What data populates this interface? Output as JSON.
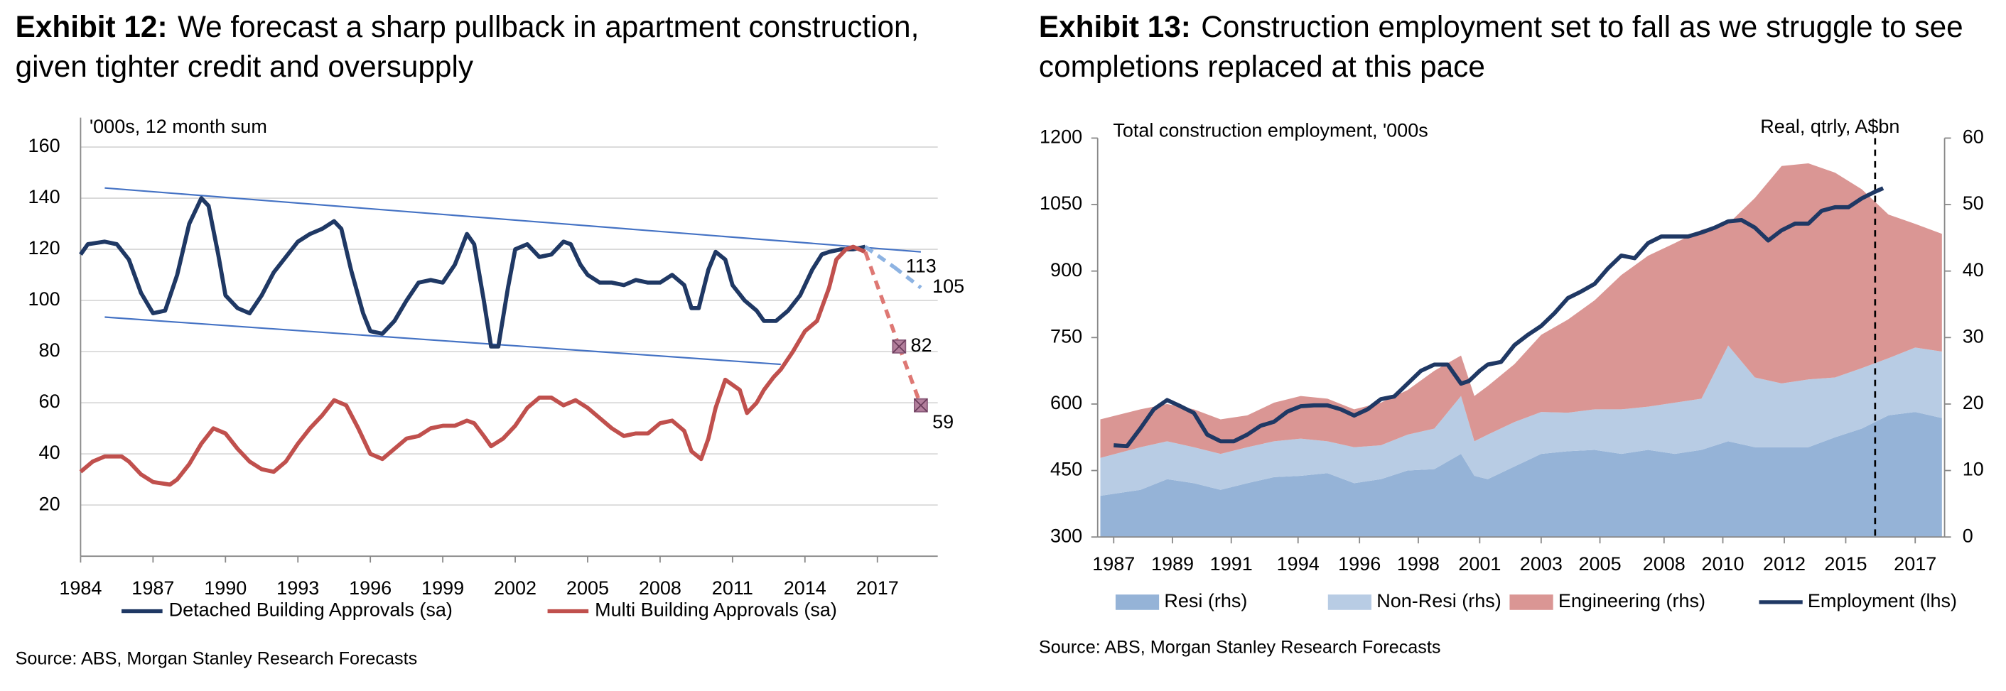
{
  "chart_data": [
    {
      "type": "line",
      "exhibit": "Exhibit 12:",
      "title": "We forecast a sharp pullback in apartment construction, given tighter credit and oversupply",
      "annotation": "'000s, 12 month sum",
      "source": "Source: ABS, Morgan Stanley Research Forecasts",
      "xlim": [
        1984,
        2019.5
      ],
      "xticks": [
        1984,
        1987,
        1990,
        1993,
        1996,
        1999,
        2002,
        2005,
        2008,
        2011,
        2014,
        2017
      ],
      "ylim": [
        0,
        160
      ],
      "yticks": [
        20,
        40,
        60,
        80,
        100,
        120,
        140,
        160
      ],
      "grid": true,
      "legend": "bottom",
      "series": [
        {
          "name": "Detached Building Approvals (sa)",
          "color": "#1f3864",
          "x": [
            1984,
            1984.3,
            1985,
            1985.5,
            1986,
            1986.5,
            1987,
            1987.5,
            1988,
            1988.5,
            1989,
            1989.3,
            1989.7,
            1990,
            1990.5,
            1991,
            1991.5,
            1992,
            1992.5,
            1993,
            1993.5,
            1994,
            1994.5,
            1994.8,
            1995.2,
            1995.7,
            1996,
            1996.5,
            1997,
            1997.5,
            1998,
            1998.5,
            1999,
            1999.5,
            2000,
            2000.3,
            2000.7,
            2001,
            2001.3,
            2001.7,
            2002,
            2002.5,
            2003,
            2003.5,
            2004,
            2004.3,
            2004.7,
            2005,
            2005.5,
            2006,
            2006.5,
            2007,
            2007.5,
            2008,
            2008.5,
            2009,
            2009.3,
            2009.6,
            2010,
            2010.3,
            2010.7,
            2011,
            2011.5,
            2012,
            2012.3,
            2012.8,
            2013.3,
            2013.8,
            2014.3,
            2014.7,
            2015,
            2015.5,
            2016,
            2016.5
          ],
          "values": [
            118,
            122,
            123,
            122,
            116,
            103,
            95,
            96,
            110,
            130,
            140,
            137,
            118,
            102,
            97,
            95,
            102,
            111,
            117,
            123,
            126,
            128,
            131,
            128,
            112,
            95,
            88,
            87,
            92,
            100,
            107,
            108,
            107,
            114,
            126,
            122,
            100,
            82,
            82,
            105,
            120,
            122,
            117,
            118,
            123,
            122,
            114,
            110,
            107,
            107,
            106,
            108,
            107,
            107,
            110,
            106,
            97,
            97,
            112,
            119,
            116,
            106,
            100,
            96,
            92,
            92,
            96,
            102,
            112,
            118,
            119,
            120,
            120,
            121
          ]
        },
        {
          "name": "Multi Building Approvals (sa)",
          "color": "#c0504d",
          "x": [
            1984,
            1984.5,
            1985,
            1985.7,
            1986,
            1986.5,
            1987,
            1987.7,
            1988,
            1988.5,
            1989,
            1989.5,
            1990,
            1990.5,
            1991,
            1991.5,
            1992,
            1992.5,
            1993,
            1993.5,
            1994,
            1994.5,
            1995,
            1995.5,
            1996,
            1996.5,
            1997,
            1997.5,
            1998,
            1998.5,
            1999,
            1999.5,
            2000,
            2000.3,
            2000.7,
            2001,
            2001.5,
            2002,
            2002.5,
            2003,
            2003.5,
            2004,
            2004.5,
            2005,
            2005.5,
            2006,
            2006.5,
            2007,
            2007.5,
            2008,
            2008.5,
            2009,
            2009.3,
            2009.7,
            2010,
            2010.3,
            2010.7,
            2011,
            2011.3,
            2011.6,
            2012,
            2012.3,
            2012.7,
            2013,
            2013.5,
            2014,
            2014.5,
            2015,
            2015.3,
            2015.7,
            2016,
            2016.5
          ],
          "values": [
            33,
            37,
            39,
            39,
            37,
            32,
            29,
            28,
            30,
            36,
            44,
            50,
            48,
            42,
            37,
            34,
            33,
            37,
            44,
            50,
            55,
            61,
            59,
            50,
            40,
            38,
            42,
            46,
            47,
            50,
            51,
            51,
            53,
            52,
            47,
            43,
            46,
            51,
            58,
            62,
            62,
            59,
            61,
            58,
            54,
            50,
            47,
            48,
            48,
            52,
            53,
            49,
            41,
            38,
            46,
            58,
            69,
            67,
            65,
            56,
            60,
            65,
            70,
            73,
            80,
            88,
            92,
            105,
            116,
            120,
            121,
            119
          ]
        }
      ],
      "forecasts": [
        {
          "color": "#8db3e2",
          "x": [
            2017.7,
            2018.8
          ],
          "values": [
            113,
            105
          ]
        },
        {
          "color": "#de7874",
          "x": [
            2017.9,
            2018.8
          ],
          "values": [
            82,
            59
          ],
          "marker": "x"
        }
      ],
      "trend_lines": [
        {
          "color": "#4472c4",
          "x": [
            1985,
            2018.8
          ],
          "values": [
            144,
            119
          ]
        },
        {
          "color": "#4472c4",
          "x": [
            1985,
            2013
          ],
          "values": [
            93.5,
            75
          ]
        }
      ]
    },
    {
      "type": "area",
      "exhibit": "Exhibit 13:",
      "title": "Construction employment set to fall as we struggle to see completions replaced at this pace",
      "annotations": [
        "Total construction employment, '000s",
        "Real, qtrly, A$bn"
      ],
      "source": "Source: ABS, Morgan Stanley Research Forecasts",
      "xlim": [
        1986.4,
        2018.1
      ],
      "xticks": [
        {
          "value": 1987,
          "label": "1987"
        },
        {
          "value": 1989.2,
          "label": "1989"
        },
        {
          "value": 1991.4,
          "label": "1991"
        },
        {
          "value": 1993.9,
          "label": "1994"
        },
        {
          "value": 1996.2,
          "label": "1996"
        },
        {
          "value": 1998.4,
          "label": "1998"
        },
        {
          "value": 2000.7,
          "label": "2001"
        },
        {
          "value": 2003.0,
          "label": "2003"
        },
        {
          "value": 2005.2,
          "label": "2005"
        },
        {
          "value": 2007.6,
          "label": "2008"
        },
        {
          "value": 2009.8,
          "label": "2010"
        },
        {
          "value": 2012.1,
          "label": "2012"
        },
        {
          "value": 2014.4,
          "label": "2015"
        },
        {
          "value": 2017,
          "label": "2017"
        }
      ],
      "ylim": [
        300,
        1200
      ],
      "yticks": [
        300,
        450,
        600,
        750,
        900,
        1050,
        1200
      ],
      "y2lim": [
        0,
        60
      ],
      "y2ticks": [
        0,
        10,
        20,
        30,
        40,
        50,
        60
      ],
      "grid": false,
      "legend": "bottom",
      "vline": 2015.5,
      "series": [
        {
          "name": "Resi (rhs)",
          "color": "#95b3d7",
          "axis": "y2",
          "type": "area",
          "x": [
            1986.5,
            1988,
            1989,
            1990,
            1991,
            1992,
            1993,
            1994,
            1995,
            1996,
            1997,
            1998,
            1999,
            2000,
            2000.5,
            2001,
            2002,
            2003,
            2004,
            2005,
            2006,
            2007,
            2008,
            2009,
            2010,
            2011,
            2012,
            2013,
            2014,
            2015,
            2016,
            2017,
            2018
          ],
          "values": [
            6.2,
            7.1,
            8.7,
            8.1,
            7.1,
            8.1,
            9.0,
            9.2,
            9.6,
            8.1,
            8.7,
            10.0,
            10.2,
            12.5,
            9.2,
            8.7,
            10.6,
            12.5,
            12.9,
            13.1,
            12.5,
            13.1,
            12.5,
            13.1,
            14.4,
            13.5,
            13.5,
            13.5,
            15.0,
            16.3,
            18.3,
            18.8,
            17.9
          ]
        },
        {
          "name": "Non-Resi (rhs)",
          "color": "#b8cce4",
          "axis": "y2",
          "type": "area",
          "x": [
            1986.5,
            1988,
            1989,
            1990,
            1991,
            1992,
            1993,
            1994,
            1995,
            1996,
            1997,
            1998,
            1999,
            2000,
            2000.5,
            2001,
            2002,
            2003,
            2004,
            2005,
            2006,
            2007,
            2008,
            2009,
            2010,
            2011,
            2012,
            2013,
            2014,
            2015,
            2016,
            2017,
            2018
          ],
          "values": [
            5.7,
            6.4,
            5.7,
            5.4,
            5.4,
            5.4,
            5.4,
            5.6,
            4.8,
            5.4,
            5.1,
            5.4,
            6.1,
            8.7,
            5.2,
            6.7,
            6.7,
            6.3,
            5.8,
            6.1,
            6.7,
            6.5,
            7.7,
            7.7,
            14.4,
            10.5,
            9.6,
            10.2,
            9.0,
            9.1,
            8.6,
            9.7,
            10.0
          ]
        },
        {
          "name": "Engineering (rhs)",
          "color": "#da9694",
          "axis": "y2",
          "type": "area",
          "x": [
            1986.5,
            1988,
            1989,
            1990,
            1991,
            1992,
            1993,
            1994,
            1995,
            1996,
            1997,
            1998,
            1999,
            2000,
            2000.5,
            2001,
            2002,
            2003,
            2004,
            2005,
            2006,
            2007,
            2008,
            2009,
            2010,
            2011,
            2012,
            2013,
            2014,
            2015,
            2016,
            2017,
            2018
          ],
          "values": [
            5.8,
            5.7,
            5.6,
            5.7,
            5.2,
            4.8,
            5.8,
            6.4,
            6.4,
            5.7,
            6.4,
            6.7,
            8.7,
            6.1,
            6.8,
            7.3,
            8.7,
            11.6,
            14.0,
            16.4,
            20.2,
            22.7,
            24.0,
            25.4,
            18.3,
            27.0,
            32.7,
            32.5,
            30.8,
            26.9,
            21.6,
            18.6,
            17.7
          ]
        },
        {
          "name": "Employment (lhs)",
          "color": "#1f3864",
          "axis": "y",
          "type": "line",
          "x": [
            1987,
            1987.5,
            1988,
            1988.5,
            1989,
            1989.5,
            1990,
            1990.5,
            1991,
            1991.5,
            1992,
            1992.5,
            1993,
            1993.5,
            1994,
            1994.5,
            1995,
            1995.5,
            1996,
            1996.5,
            1997,
            1997.5,
            1998,
            1998.5,
            1999,
            1999.5,
            2000,
            2000.3,
            2000.7,
            2001,
            2001.5,
            2002,
            2002.5,
            2003,
            2003.5,
            2004,
            2004.5,
            2005,
            2005.5,
            2006,
            2006.5,
            2007,
            2007.5,
            2008,
            2008.5,
            2009,
            2009.5,
            2010,
            2010.5,
            2011,
            2011.5,
            2012,
            2012.5,
            2013,
            2013.5,
            2014,
            2014.5,
            2015,
            2015.5,
            2015.8
          ],
          "values": [
            507,
            505,
            545,
            588,
            609,
            595,
            580,
            531,
            516,
            516,
            531,
            551,
            560,
            583,
            595,
            597,
            597,
            588,
            574,
            588,
            611,
            617,
            646,
            675,
            689,
            689,
            646,
            652,
            675,
            689,
            695,
            733,
            756,
            776,
            805,
            839,
            854,
            871,
            906,
            935,
            929,
            963,
            978,
            978,
            978,
            987,
            998,
            1012,
            1015,
            998,
            969,
            992,
            1007,
            1007,
            1036,
            1044,
            1044,
            1064,
            1079,
            1087
          ]
        }
      ]
    }
  ]
}
